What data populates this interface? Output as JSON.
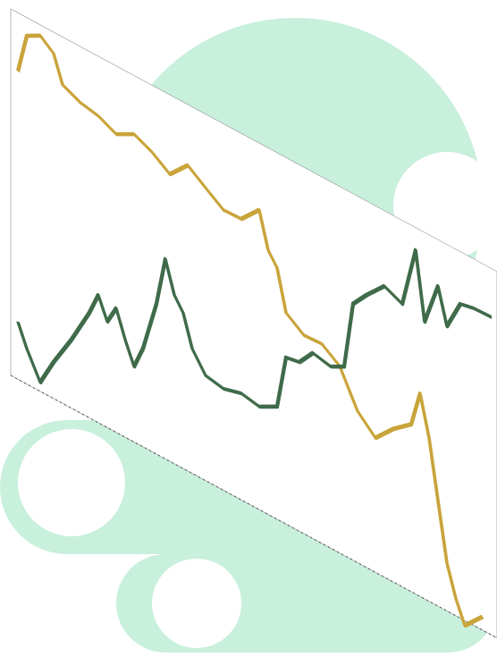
{
  "chart_data": {
    "type": "line",
    "xlim": [
      12,
      556
    ],
    "ylim": [
      -5,
      100
    ],
    "skew": 0.54,
    "series": [
      {
        "color": "#c9a43a",
        "x": [
          20,
          30,
          45,
          60,
          70,
          90,
          110,
          130,
          150,
          170,
          190,
          210,
          230,
          250,
          270,
          290,
          300,
          310,
          320,
          340,
          360,
          380,
          400,
          420,
          440,
          460,
          470,
          480,
          490,
          500,
          510,
          520,
          540
        ],
        "values": [
          83.6,
          94.9,
          97,
          94,
          86.6,
          84.3,
          83.3,
          80.9,
          83.6,
          81.3,
          77.8,
          83,
          79.4,
          75.9,
          76.1,
          81.3,
          71.4,
          67.8,
          56.6,
          53,
          53.3,
          49.8,
          39.9,
          35.1,
          40.3,
          44.3,
          54.3,
          43.2,
          27,
          10.9,
          2.3,
          -3.9,
          1.3
        ]
      },
      {
        "color": "#3f6b4a",
        "x": [
          20,
          30,
          45,
          60,
          80,
          100,
          110,
          120,
          130,
          140,
          150,
          160,
          175,
          185,
          195,
          205,
          215,
          230,
          250,
          270,
          290,
          310,
          320,
          335,
          350,
          370,
          385,
          395,
          410,
          430,
          450,
          465,
          475,
          490,
          500,
          515,
          530,
          550
        ],
        "values": [
          13.6,
          7.4,
          0,
          7.7,
          16.7,
          26.9,
          33.2,
          27.1,
          32.2,
          24.8,
          18.6,
          25,
          39.5,
          53.4,
          44.7,
          41,
          32.4,
          26.9,
          25.9,
          27.3,
          26.3,
          29,
          44.1,
          44.8,
          49.4,
          48.3,
          50.3,
          69.2,
          73.7,
          78.9,
          76.6,
          93.7,
          75,
          87,
          77.1,
          85.4,
          86.2,
          86.4
        ]
      }
    ]
  }
}
